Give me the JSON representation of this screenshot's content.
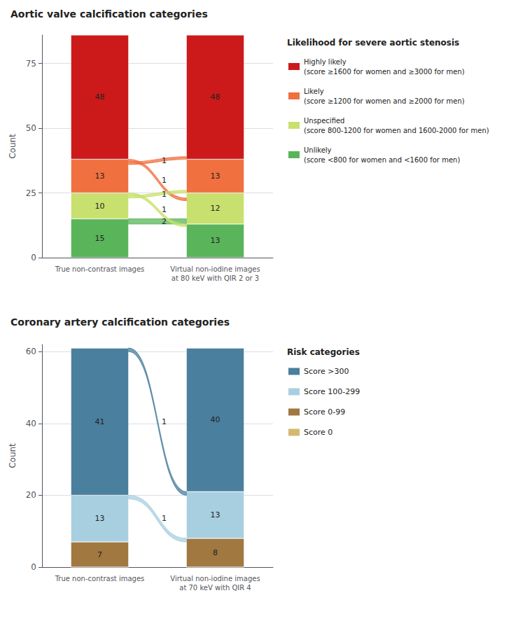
{
  "chart_data": [
    {
      "type": "bar",
      "stacked": true,
      "grid": true,
      "data_labels": true,
      "legend": "right",
      "title": "Aortic valve calcification categories",
      "ylabel": "Count",
      "categories": [
        "True non-contrast images",
        "Virtual non-iodine images\nat 80 keV with QIR 2 or 3"
      ],
      "ylim": [
        0,
        86
      ],
      "yticks": [
        0,
        25,
        50,
        75
      ],
      "series": [
        {
          "name": "Unlikely\n(score <800 for women and <1600 for men)",
          "color": "#5ab55a",
          "values": [
            15,
            13
          ]
        },
        {
          "name": "Unspecified\n(score 800-1200 for women and 1600-2000 for men)",
          "color": "#c8e06e",
          "values": [
            10,
            12
          ]
        },
        {
          "name": "Likely\n(score ≥1200 for women and ≥2000 for men)",
          "color": "#f07040",
          "values": [
            13,
            13
          ]
        },
        {
          "name": "Highly likely\n(score ≥1600 for women and ≥3000 for men)",
          "color": "#cc1a1a",
          "values": [
            48,
            48
          ]
        }
      ],
      "flows": [
        {
          "from": "Unlikely\n(score <800 for women and <1600 for men)",
          "to": "Unspecified\n(score 800-1200 for women and 1600-2000 for men)",
          "value": 2
        },
        {
          "from": "Unspecified\n(score 800-1200 for women and 1600-2000 for men)",
          "to": "Unlikely\n(score <800 for women and <1600 for men)",
          "value": 1
        },
        {
          "from": "Likely\n(score ≥1200 for women and ≥2000 for men)",
          "to": "Unspecified\n(score 800-1200 for women and 1600-2000 for men)",
          "value": 1
        },
        {
          "from": "Unspecified\n(score 800-1200 for women and 1600-2000 for men)",
          "to": "Likely\n(score ≥1200 for women and ≥2000 for men)",
          "value": 1
        },
        {
          "from": "Likely\n(score ≥1200 for women and ≥2000 for men)",
          "to": "Highly likely\n(score ≥1600 for women and ≥3000 for men)",
          "value": 1
        }
      ],
      "legend_title": "Likelihood for severe aortic stenosis"
    },
    {
      "type": "bar",
      "stacked": true,
      "grid": true,
      "data_labels": true,
      "legend": "right",
      "title": "Coronary artery calcification categories",
      "ylabel": "Count",
      "categories": [
        "True non-contrast images",
        "Virtual non-iodine images\nat 70 keV with QIR 4"
      ],
      "ylim": [
        0,
        62
      ],
      "yticks": [
        0,
        20,
        40,
        60
      ],
      "series": [
        {
          "name": "Score 0",
          "color": "#d4b870",
          "values": [
            0,
            0
          ]
        },
        {
          "name": "Score 0-99",
          "color": "#a07840",
          "values": [
            7,
            8
          ]
        },
        {
          "name": "Score 100-299",
          "color": "#a8cfe0",
          "values": [
            13,
            13
          ]
        },
        {
          "name": "Score >300",
          "color": "#4a7f9e",
          "values": [
            41,
            40
          ]
        }
      ],
      "flows": [
        {
          "from": "Score >300",
          "to": "Score 100-299",
          "value": 1
        },
        {
          "from": "Score 100-299",
          "to": "Score 0-99",
          "value": 1
        }
      ],
      "legend_title": "Risk categories"
    }
  ]
}
